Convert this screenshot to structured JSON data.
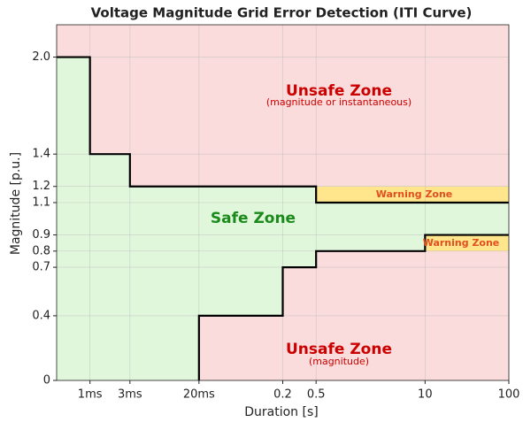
{
  "chart_data": {
    "type": "step",
    "title": "Voltage Magnitude Grid Error Detection (ITI Curve)",
    "xlabel": "Duration [s]",
    "ylabel": "Magnitude [p.u.]",
    "xscale": "log",
    "xlim": [
      0.0004,
      100
    ],
    "ylim": [
      0,
      2.2
    ],
    "xticks": [
      {
        "value": 0.001,
        "label": "1ms"
      },
      {
        "value": 0.003,
        "label": "3ms"
      },
      {
        "value": 0.02,
        "label": "20ms"
      },
      0.2,
      0.5,
      10,
      100
    ],
    "yticks": [
      0,
      0.4,
      0.7,
      0.8,
      0.9,
      1.1,
      1.2,
      1.4,
      {
        "value": 2,
        "label": "2.0"
      }
    ],
    "grid": true,
    "unsafe_color": "#fbdcdc",
    "safe_color": "#e1f7dc",
    "series": [
      {
        "color": "#000000",
        "x": [
          0.0004,
          0.001,
          0.001,
          0.003,
          0.003,
          0.5,
          0.5,
          100
        ],
        "values": [
          2,
          2,
          1.4,
          1.4,
          1.2,
          1.2,
          1.1,
          1.1
        ]
      },
      {
        "color": "#000000",
        "x": [
          0.02,
          0.02,
          0.2,
          0.2,
          0.5,
          0.5,
          10,
          10,
          100
        ],
        "values": [
          0,
          0.4,
          0.4,
          0.7,
          0.7,
          0.8,
          0.8,
          0.9,
          0.9
        ]
      }
    ],
    "zones": [
      {
        "x": [
          0.5,
          100
        ],
        "y": [
          1.1,
          1.2
        ],
        "color": "#ffe68c",
        "label": "Warning Zone"
      },
      {
        "x": [
          10,
          100
        ],
        "y": [
          0.8,
          0.9
        ],
        "color": "#ffe68c",
        "label": "Warning Zone"
      }
    ],
    "annotations": [
      {
        "text": "Unsafe Zone",
        "color": "#cc0000"
      },
      {
        "text": "(magnitude or instantaneous)",
        "color": "#cc0000"
      },
      {
        "text": "Safe Zone",
        "color": "#1a8a1a"
      },
      {
        "text": "Unsafe Zone",
        "color": "#cc0000"
      },
      {
        "text": "(magnitude)",
        "color": "#cc0000"
      }
    ],
    "zone_label_color": "#e0501e"
  }
}
